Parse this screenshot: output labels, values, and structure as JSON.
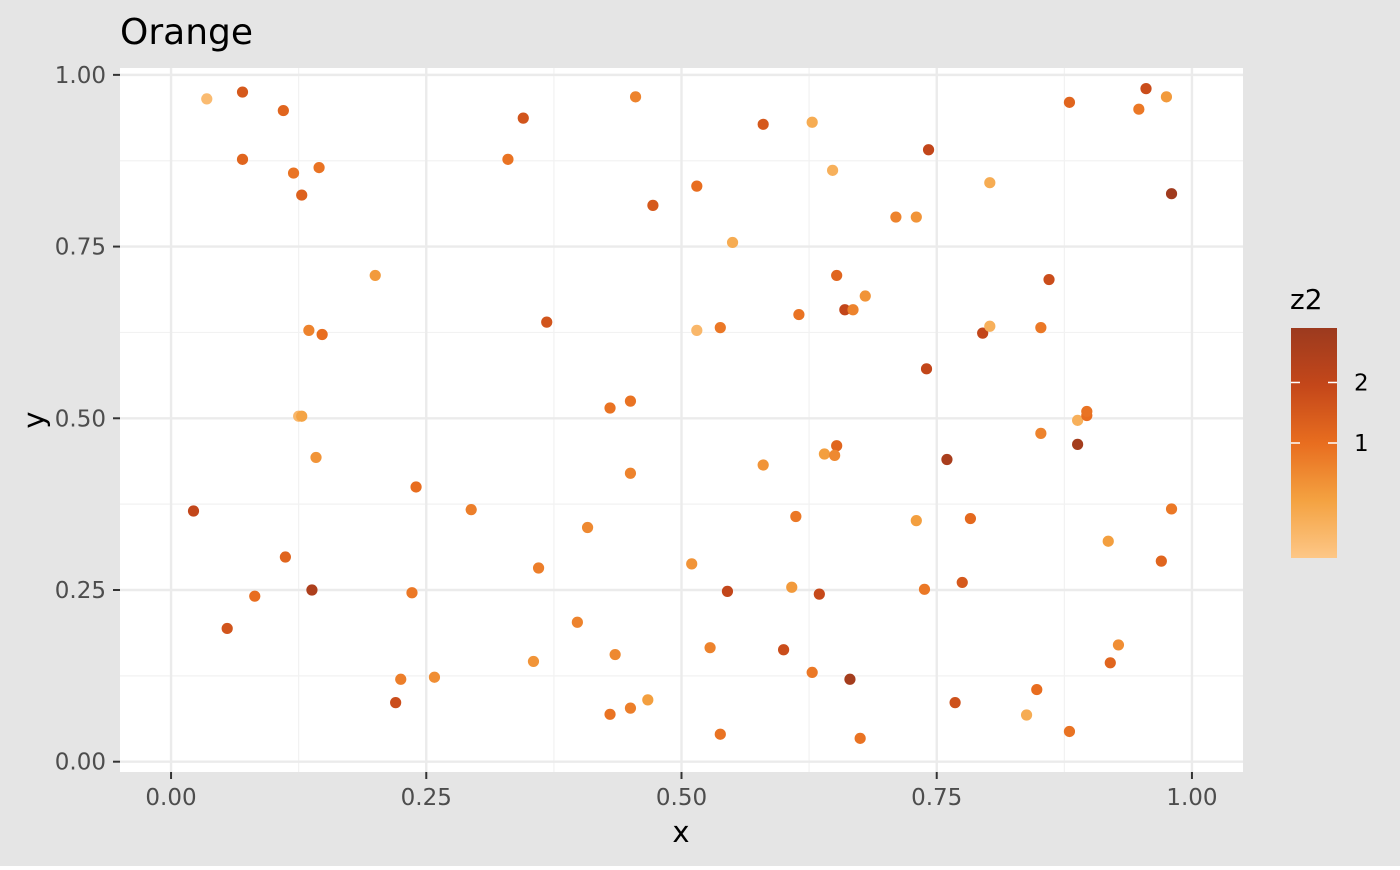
{
  "chart_data": {
    "type": "scatter",
    "title": "Orange",
    "xlabel": "x",
    "ylabel": "y",
    "xlim": [
      -0.05,
      1.05
    ],
    "ylim": [
      -0.015,
      1.01
    ],
    "x_ticks": [
      0.0,
      0.25,
      0.5,
      0.75,
      1.0
    ],
    "x_tick_labels": [
      "0.00",
      "0.25",
      "0.50",
      "0.75",
      "1.00"
    ],
    "y_ticks": [
      0.0,
      0.25,
      0.5,
      0.75,
      1.0
    ],
    "y_tick_labels": [
      "0.00",
      "0.25",
      "0.50",
      "0.75",
      "1.00"
    ],
    "grid": true,
    "legend": {
      "title": "z2",
      "position": "right",
      "type": "colorbar",
      "range": [
        -0.9,
        2.9
      ],
      "ticks": [
        1,
        2
      ],
      "tick_labels": [
        "1",
        "2"
      ],
      "colors": [
        "#fdc787",
        "#f4a241",
        "#e86d1f",
        "#c4471a",
        "#9c3a1e"
      ]
    },
    "points": [
      {
        "x": 0.035,
        "y": 0.965,
        "z": -0.6
      },
      {
        "x": 0.07,
        "y": 0.975,
        "z": 1.5
      },
      {
        "x": 0.11,
        "y": 0.948,
        "z": 1.2
      },
      {
        "x": 0.07,
        "y": 0.877,
        "z": 1.2
      },
      {
        "x": 0.12,
        "y": 0.857,
        "z": 0.9
      },
      {
        "x": 0.145,
        "y": 0.865,
        "z": 0.9
      },
      {
        "x": 0.128,
        "y": 0.825,
        "z": 1.3
      },
      {
        "x": 0.2,
        "y": 0.708,
        "z": 0.2
      },
      {
        "x": 0.135,
        "y": 0.628,
        "z": 0.6
      },
      {
        "x": 0.148,
        "y": 0.622,
        "z": 1.0
      },
      {
        "x": 0.125,
        "y": 0.503,
        "z": -0.5
      },
      {
        "x": 0.128,
        "y": 0.503,
        "z": 0.0
      },
      {
        "x": 0.142,
        "y": 0.443,
        "z": 0.3
      },
      {
        "x": 0.022,
        "y": 0.365,
        "z": 2.0
      },
      {
        "x": 0.112,
        "y": 0.298,
        "z": 1.2
      },
      {
        "x": 0.138,
        "y": 0.25,
        "z": 2.5
      },
      {
        "x": 0.082,
        "y": 0.241,
        "z": 1.0
      },
      {
        "x": 0.055,
        "y": 0.194,
        "z": 1.6
      },
      {
        "x": 0.24,
        "y": 0.4,
        "z": 1.0
      },
      {
        "x": 0.236,
        "y": 0.246,
        "z": 0.8
      },
      {
        "x": 0.225,
        "y": 0.12,
        "z": 0.7
      },
      {
        "x": 0.258,
        "y": 0.123,
        "z": 0.4
      },
      {
        "x": 0.22,
        "y": 0.086,
        "z": 1.8
      },
      {
        "x": 0.345,
        "y": 0.937,
        "z": 1.6
      },
      {
        "x": 0.33,
        "y": 0.877,
        "z": 0.9
      },
      {
        "x": 0.455,
        "y": 0.968,
        "z": 0.6
      },
      {
        "x": 0.472,
        "y": 0.81,
        "z": 1.5
      },
      {
        "x": 0.368,
        "y": 0.64,
        "z": 1.6
      },
      {
        "x": 0.45,
        "y": 0.525,
        "z": 0.9
      },
      {
        "x": 0.43,
        "y": 0.515,
        "z": 0.9
      },
      {
        "x": 0.45,
        "y": 0.42,
        "z": 0.6
      },
      {
        "x": 0.294,
        "y": 0.367,
        "z": 0.7
      },
      {
        "x": 0.408,
        "y": 0.341,
        "z": 0.5
      },
      {
        "x": 0.36,
        "y": 0.282,
        "z": 0.7
      },
      {
        "x": 0.398,
        "y": 0.203,
        "z": 0.6
      },
      {
        "x": 0.435,
        "y": 0.156,
        "z": 0.5
      },
      {
        "x": 0.355,
        "y": 0.146,
        "z": 0.3
      },
      {
        "x": 0.43,
        "y": 0.069,
        "z": 0.9
      },
      {
        "x": 0.45,
        "y": 0.078,
        "z": 0.7
      },
      {
        "x": 0.467,
        "y": 0.09,
        "z": 0.1
      },
      {
        "x": 0.515,
        "y": 0.838,
        "z": 1.0
      },
      {
        "x": 0.58,
        "y": 0.928,
        "z": 1.5
      },
      {
        "x": 0.55,
        "y": 0.756,
        "z": -0.2
      },
      {
        "x": 0.538,
        "y": 0.632,
        "z": 0.8
      },
      {
        "x": 0.515,
        "y": 0.628,
        "z": -0.5
      },
      {
        "x": 0.51,
        "y": 0.288,
        "z": 0.3
      },
      {
        "x": 0.545,
        "y": 0.248,
        "z": 2.0
      },
      {
        "x": 0.528,
        "y": 0.166,
        "z": 0.6
      },
      {
        "x": 0.538,
        "y": 0.04,
        "z": 0.9
      },
      {
        "x": 0.58,
        "y": 0.432,
        "z": 0.3
      },
      {
        "x": 0.6,
        "y": 0.163,
        "z": 1.8
      },
      {
        "x": 0.628,
        "y": 0.931,
        "z": -0.2
      },
      {
        "x": 0.648,
        "y": 0.861,
        "z": -0.3
      },
      {
        "x": 0.652,
        "y": 0.708,
        "z": 1.2
      },
      {
        "x": 0.615,
        "y": 0.651,
        "z": 0.9
      },
      {
        "x": 0.66,
        "y": 0.658,
        "z": 2.0
      },
      {
        "x": 0.668,
        "y": 0.658,
        "z": 0.6
      },
      {
        "x": 0.68,
        "y": 0.678,
        "z": 0.3
      },
      {
        "x": 0.612,
        "y": 0.357,
        "z": 0.8
      },
      {
        "x": 0.652,
        "y": 0.46,
        "z": 1.2
      },
      {
        "x": 0.64,
        "y": 0.448,
        "z": 0.1
      },
      {
        "x": 0.65,
        "y": 0.446,
        "z": 0.5
      },
      {
        "x": 0.608,
        "y": 0.254,
        "z": 0.2
      },
      {
        "x": 0.635,
        "y": 0.244,
        "z": 1.9
      },
      {
        "x": 0.628,
        "y": 0.13,
        "z": 0.8
      },
      {
        "x": 0.665,
        "y": 0.12,
        "z": 2.7
      },
      {
        "x": 0.675,
        "y": 0.034,
        "z": 0.9
      },
      {
        "x": 0.742,
        "y": 0.891,
        "z": 2.0
      },
      {
        "x": 0.71,
        "y": 0.793,
        "z": 0.6
      },
      {
        "x": 0.73,
        "y": 0.793,
        "z": 0.3
      },
      {
        "x": 0.74,
        "y": 0.572,
        "z": 2.0
      },
      {
        "x": 0.76,
        "y": 0.44,
        "z": 2.6
      },
      {
        "x": 0.73,
        "y": 0.351,
        "z": 0.1
      },
      {
        "x": 0.783,
        "y": 0.354,
        "z": 1.1
      },
      {
        "x": 0.738,
        "y": 0.251,
        "z": 0.8
      },
      {
        "x": 0.775,
        "y": 0.261,
        "z": 1.5
      },
      {
        "x": 0.768,
        "y": 0.086,
        "z": 1.7
      },
      {
        "x": 0.802,
        "y": 0.843,
        "z": -0.2
      },
      {
        "x": 0.795,
        "y": 0.624,
        "z": 2.0
      },
      {
        "x": 0.802,
        "y": 0.634,
        "z": -0.3
      },
      {
        "x": 0.86,
        "y": 0.702,
        "z": 1.8
      },
      {
        "x": 0.852,
        "y": 0.632,
        "z": 0.8
      },
      {
        "x": 0.852,
        "y": 0.478,
        "z": 0.6
      },
      {
        "x": 0.888,
        "y": 0.462,
        "z": 2.7
      },
      {
        "x": 0.888,
        "y": 0.497,
        "z": -0.3
      },
      {
        "x": 0.897,
        "y": 0.504,
        "z": 1.0
      },
      {
        "x": 0.897,
        "y": 0.51,
        "z": 0.9
      },
      {
        "x": 0.88,
        "y": 0.96,
        "z": 1.2
      },
      {
        "x": 0.955,
        "y": 0.98,
        "z": 1.8
      },
      {
        "x": 0.948,
        "y": 0.95,
        "z": 0.8
      },
      {
        "x": 0.975,
        "y": 0.968,
        "z": 0.2
      },
      {
        "x": 0.98,
        "y": 0.827,
        "z": 2.8
      },
      {
        "x": 0.918,
        "y": 0.321,
        "z": 0.1
      },
      {
        "x": 0.98,
        "y": 0.368,
        "z": 0.8
      },
      {
        "x": 0.97,
        "y": 0.292,
        "z": 1.2
      },
      {
        "x": 0.928,
        "y": 0.17,
        "z": 0.4
      },
      {
        "x": 0.92,
        "y": 0.144,
        "z": 1.2
      },
      {
        "x": 0.848,
        "y": 0.105,
        "z": 1.0
      },
      {
        "x": 0.838,
        "y": 0.068,
        "z": -0.2
      },
      {
        "x": 0.88,
        "y": 0.044,
        "z": 0.9
      }
    ]
  }
}
